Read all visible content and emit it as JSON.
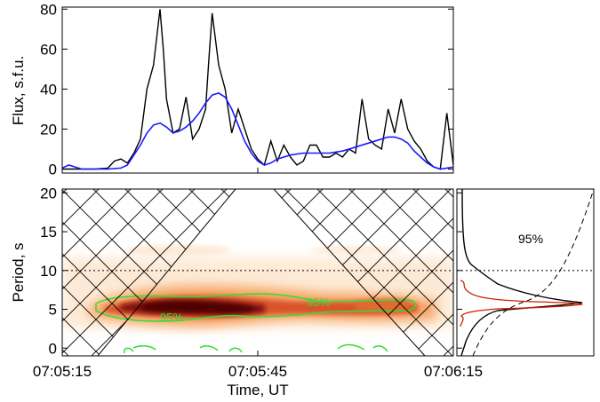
{
  "chart_data": [
    {
      "type": "line",
      "ylabel": "Flux, s.f.u.",
      "xlim": [
        "07:05:15",
        "07:06:15"
      ],
      "ylim": [
        -2,
        81
      ],
      "yticks": [
        "0",
        "20",
        "40",
        "60",
        "80"
      ],
      "colors": {
        "raw": "#000000",
        "smoothed": "#1a1aff"
      },
      "series": [
        {
          "key": "raw",
          "style": "black",
          "x_seconds_after_start": [
            0,
            5,
            7,
            8,
            9,
            10,
            11,
            12,
            13,
            14,
            15,
            15.5,
            16,
            17,
            18,
            19,
            20,
            21,
            22,
            22.5,
            23,
            24,
            25,
            26,
            27,
            28,
            29,
            30,
            31,
            32,
            33,
            34,
            35,
            36,
            37,
            38,
            39,
            40,
            41,
            42,
            43,
            44,
            45,
            46,
            47,
            48,
            49,
            50,
            51,
            52,
            53,
            54,
            55,
            56,
            57,
            58,
            59,
            60
          ],
          "values": [
            0,
            0,
            0.5,
            4,
            5,
            3,
            8,
            15,
            40,
            52,
            80,
            60,
            35,
            18,
            20,
            36,
            15,
            20,
            30,
            55,
            78,
            52,
            40,
            18,
            30,
            20,
            10,
            5,
            2,
            14,
            4,
            12,
            6,
            2,
            4,
            12,
            12,
            6,
            6,
            8,
            6,
            10,
            8,
            35,
            15,
            12,
            10,
            30,
            18,
            35,
            20,
            14,
            10,
            4,
            1,
            0,
            28,
            2
          ]
        },
        {
          "key": "smoothed",
          "style": "blue",
          "x_seconds_after_start": [
            0,
            1,
            3,
            5,
            7,
            9,
            10,
            11,
            12,
            13,
            14,
            15,
            16,
            17,
            18,
            19,
            20,
            21,
            22,
            23,
            24,
            25,
            26,
            27,
            28,
            29,
            30,
            31,
            32,
            33,
            35,
            37,
            39,
            41,
            43,
            44,
            45,
            47,
            49,
            50,
            51,
            52,
            53,
            54,
            55,
            56,
            57,
            58,
            59,
            60
          ],
          "values": [
            0.5,
            2,
            0,
            0,
            0,
            0.5,
            2,
            7,
            12,
            18,
            22,
            23,
            21,
            18,
            19,
            21,
            24,
            28,
            33,
            37,
            38,
            36,
            30,
            22,
            14,
            8,
            4,
            2,
            3,
            5,
            7,
            8,
            8,
            8,
            9,
            10,
            11,
            13,
            15,
            16,
            16,
            15,
            13,
            9,
            6,
            3,
            1,
            0,
            0.5,
            1
          ]
        }
      ]
    },
    {
      "type": "heatmap",
      "xlabel": "Time, UT",
      "ylabel": "Period, s",
      "xticks": [
        "07:05:15",
        "07:05:45",
        "07:06:15"
      ],
      "yticks": [
        "0",
        "5",
        "10",
        "15",
        "20"
      ],
      "ylim": [
        -1,
        20.5
      ],
      "annotations": [
        "95%",
        "95%"
      ],
      "band_period_center_s": 5.8,
      "band_period_halfwidth_s": 1.6,
      "reference_period_s": 10,
      "colors": {
        "peak": "#4d0000",
        "high": "#c0392b",
        "mid": "#e8743b",
        "low": "#fbd9b8",
        "contour": "#33dd33",
        "hatch": "#000000"
      }
    },
    {
      "type": "line",
      "description": "global wavelet spectrum",
      "yticks": [],
      "ylim": [
        -1,
        20.5
      ],
      "annotations": [
        "95%"
      ],
      "peak_period_s": 6,
      "reference_period_s": 10,
      "colors": {
        "spectrum": "#000000",
        "red_spectrum": "#cc2200",
        "significance": "#000000"
      }
    }
  ]
}
